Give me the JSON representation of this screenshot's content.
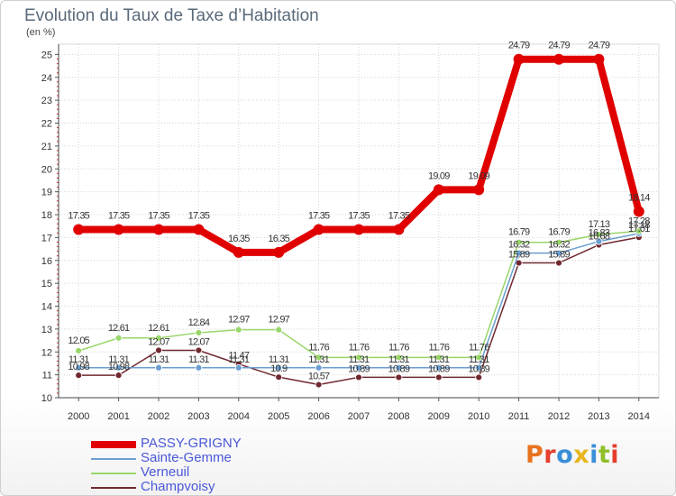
{
  "chart_data": {
    "type": "line",
    "title": "Evolution du Taux de Taxe d’Habitation",
    "ylabel": "(en %)",
    "xlabel": "",
    "ylim": [
      10,
      25
    ],
    "y_ticks": [
      "10",
      "11",
      "12",
      "13",
      "14",
      "15",
      "16",
      "17",
      "18",
      "19",
      "20",
      "21",
      "22",
      "23",
      "24",
      "25"
    ],
    "categories": [
      "2000",
      "2001",
      "2002",
      "2003",
      "2004",
      "2005",
      "2006",
      "2007",
      "2008",
      "2009",
      "2010",
      "2011",
      "2012",
      "2013",
      "2014"
    ],
    "grid": true,
    "series": [
      {
        "name": "PASSY-GRIGNY",
        "color": "#e00000",
        "values": [
          17.35,
          17.35,
          17.35,
          17.35,
          16.35,
          16.35,
          17.35,
          17.35,
          17.35,
          19.09,
          19.09,
          24.79,
          24.79,
          24.79,
          18.14
        ],
        "labels": [
          "17.35",
          "17.35",
          "17.35",
          "17.35",
          "16.35",
          "16.35",
          "17.35",
          "17.35",
          "17.35",
          "19.09",
          "19.09",
          "24.79",
          "24.79",
          "24.79",
          "18.14"
        ]
      },
      {
        "name": "Sainte-Gemme",
        "color": "#6a9fd0",
        "values": [
          11.31,
          11.31,
          11.31,
          11.31,
          11.31,
          11.31,
          11.31,
          11.31,
          11.31,
          11.31,
          11.31,
          16.32,
          16.32,
          16.83,
          17.18
        ],
        "labels": [
          "11.31",
          "11.31",
          "11.31",
          "11.31",
          "11.31",
          "11.31",
          "11.31",
          "11.31",
          "11.31",
          "11.31",
          "11.31",
          "16.32",
          "16.32",
          "16.83",
          "17.18"
        ]
      },
      {
        "name": "Verneuil",
        "color": "#99d66a",
        "values": [
          12.05,
          12.61,
          12.61,
          12.84,
          12.97,
          12.97,
          11.76,
          11.76,
          11.76,
          11.76,
          11.76,
          16.79,
          16.79,
          17.13,
          17.28
        ],
        "labels": [
          "12.05",
          "12.61",
          "12.61",
          "12.84",
          "12.97",
          "12.97",
          "11.76",
          "11.76",
          "11.76",
          "11.76",
          "11.76",
          "16.79",
          "16.79",
          "17.13",
          "17.28"
        ]
      },
      {
        "name": "Champvoisy",
        "color": "#702830",
        "values": [
          10.98,
          10.98,
          12.07,
          12.07,
          11.47,
          10.9,
          10.57,
          10.89,
          10.89,
          10.89,
          10.89,
          15.89,
          15.89,
          16.68,
          17.01
        ],
        "labels": [
          "10.98",
          "10.98",
          "12.07",
          "12.07",
          "11.47",
          "10.9",
          "10.57",
          "10.89",
          "10.89",
          "10.89",
          "10.89",
          "15.89",
          "15.89",
          "16.68",
          "17.01"
        ]
      }
    ]
  },
  "logo": {
    "text": "Proxiti",
    "colors": [
      "#e8731f",
      "#e53f2d",
      "#3a8fd8",
      "#e8b51f",
      "#3a8fd8",
      "#8fbf2a",
      "#e53f2d"
    ]
  }
}
